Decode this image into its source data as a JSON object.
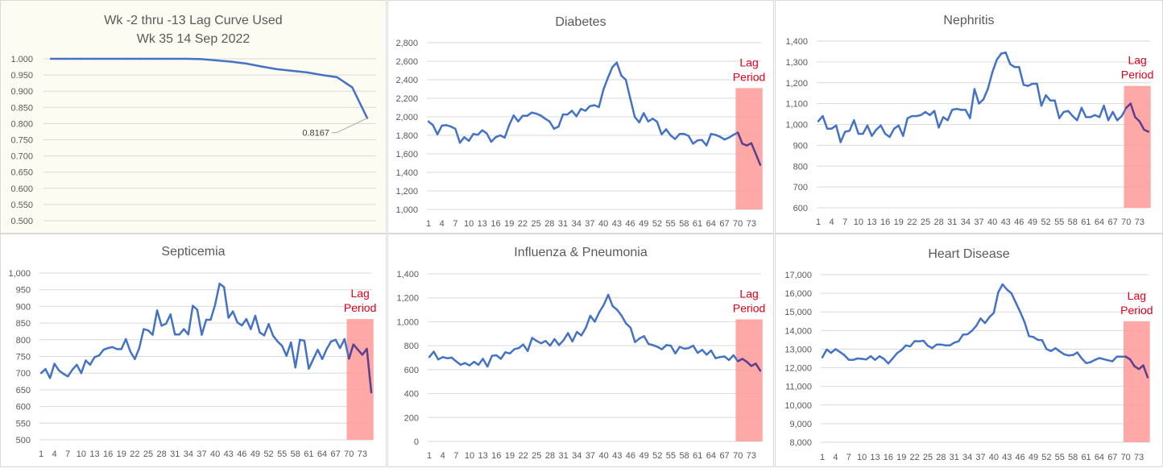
{
  "colors": {
    "line": "#4472c4",
    "line_in_lag": "#5b3f8c",
    "lag_fill": "#ff9999",
    "lag_text": "#e0001b",
    "grid": "#d9d9d9",
    "tick_text": "#595959"
  },
  "chart_data": [
    {
      "id": "lag-curve",
      "type": "line",
      "title": "Wk -2 thru -13 Lag Curve Used",
      "subtitle": "Wk 35 14 Sep 2022",
      "ylim": [
        0.5,
        1.0
      ],
      "yticks": [
        "1.000",
        "0.950",
        "0.900",
        "0.850",
        "0.800",
        "0.750",
        "0.700",
        "0.650",
        "0.600",
        "0.550",
        "0.500"
      ],
      "ytick_values": [
        1.0,
        0.95,
        0.9,
        0.85,
        0.8,
        0.75,
        0.7,
        0.65,
        0.6,
        0.55,
        0.5
      ],
      "grid": true,
      "x": [
        1,
        2,
        3,
        4,
        5,
        6,
        7,
        8,
        9,
        10,
        11,
        12,
        13,
        14,
        15,
        16,
        17,
        18,
        19,
        20,
        21,
        22
      ],
      "values": [
        1.0,
        1.0,
        1.0,
        1.0,
        1.0,
        1.0,
        1.0,
        1.0,
        1.0,
        1.0,
        0.999,
        0.995,
        0.991,
        0.985,
        0.976,
        0.968,
        0.963,
        0.958,
        0.95,
        0.943,
        0.912,
        0.8167
      ],
      "annotation": {
        "label": "0.8167",
        "point_index": 21
      }
    },
    {
      "id": "diabetes",
      "type": "line",
      "title": "Diabetes",
      "ylim": [
        1000,
        2800
      ],
      "yticks": [
        "2,800",
        "2,600",
        "2,400",
        "2,200",
        "2,000",
        "1,800",
        "1,600",
        "1,400",
        "1,200",
        "1,000"
      ],
      "ytick_values": [
        2800,
        2600,
        2400,
        2200,
        2000,
        1800,
        1600,
        1400,
        1200,
        1000
      ],
      "xticks": [
        "1",
        "4",
        "7",
        "10",
        "13",
        "16",
        "19",
        "22",
        "25",
        "28",
        "31",
        "34",
        "37",
        "40",
        "43",
        "46",
        "49",
        "52",
        "55",
        "58",
        "61",
        "64",
        "67",
        "70",
        "73"
      ],
      "grid": true,
      "lag_period": {
        "label_line1": "Lag",
        "label_line2": "Period",
        "start": 70,
        "end": 75,
        "top": 2310
      },
      "values": [
        1950,
        1910,
        1810,
        1905,
        1910,
        1895,
        1870,
        1720,
        1780,
        1740,
        1815,
        1805,
        1855,
        1820,
        1730,
        1780,
        1800,
        1775,
        1910,
        2015,
        1950,
        2010,
        2010,
        2045,
        2035,
        2015,
        1980,
        1950,
        1870,
        1895,
        2025,
        2025,
        2065,
        2005,
        2085,
        2065,
        2115,
        2125,
        2105,
        2290,
        2420,
        2535,
        2585,
        2445,
        2400,
        2200,
        2000,
        1940,
        2040,
        1950,
        1980,
        1945,
        1810,
        1865,
        1800,
        1760,
        1815,
        1815,
        1795,
        1710,
        1745,
        1750,
        1690,
        1815,
        1805,
        1785,
        1755,
        1775,
        1805,
        1830,
        1710,
        1690,
        1715,
        1600,
        1480
      ]
    },
    {
      "id": "nephritis",
      "type": "line",
      "title": "Nephritis",
      "ylim": [
        600,
        1400
      ],
      "yticks": [
        "1,400",
        "1,300",
        "1,200",
        "1,100",
        "1,000",
        "900",
        "800",
        "700",
        "600"
      ],
      "ytick_values": [
        1400,
        1300,
        1200,
        1100,
        1000,
        900,
        800,
        700,
        600
      ],
      "xticks": [
        "1",
        "4",
        "7",
        "10",
        "13",
        "16",
        "19",
        "22",
        "25",
        "28",
        "31",
        "34",
        "37",
        "40",
        "43",
        "46",
        "49",
        "52",
        "55",
        "58",
        "61",
        "64",
        "67",
        "70",
        "73"
      ],
      "grid": true,
      "lag_period": {
        "label_line1": "Lag",
        "label_line2": "Period",
        "start": 70,
        "end": 75,
        "top": 1185
      },
      "values": [
        1015,
        1040,
        980,
        980,
        995,
        915,
        965,
        970,
        1020,
        955,
        955,
        995,
        945,
        975,
        995,
        955,
        940,
        980,
        995,
        945,
        1030,
        1040,
        1040,
        1045,
        1060,
        1045,
        1065,
        985,
        1035,
        1020,
        1070,
        1075,
        1070,
        1070,
        1030,
        1170,
        1100,
        1120,
        1170,
        1250,
        1310,
        1340,
        1345,
        1290,
        1275,
        1275,
        1190,
        1185,
        1195,
        1195,
        1090,
        1140,
        1115,
        1115,
        1030,
        1060,
        1065,
        1040,
        1020,
        1080,
        1035,
        1035,
        1045,
        1035,
        1090,
        1020,
        1060,
        1020,
        1040,
        1080,
        1100,
        1035,
        1015,
        975,
        965
      ]
    },
    {
      "id": "septicemia",
      "type": "line",
      "title": "Septicemia",
      "ylim": [
        500,
        1000
      ],
      "yticks": [
        "1,000",
        "950",
        "900",
        "850",
        "800",
        "750",
        "700",
        "650",
        "600",
        "550",
        "500"
      ],
      "ytick_values": [
        1000,
        950,
        900,
        850,
        800,
        750,
        700,
        650,
        600,
        550,
        500
      ],
      "xticks": [
        "1",
        "4",
        "7",
        "10",
        "13",
        "16",
        "19",
        "22",
        "25",
        "28",
        "31",
        "34",
        "37",
        "40",
        "43",
        "46",
        "49",
        "52",
        "55",
        "58",
        "61",
        "64",
        "67",
        "70",
        "73"
      ],
      "grid": true,
      "lag_period": {
        "label_line1": "Lag",
        "label_line2": "Period",
        "start": 70,
        "end": 75,
        "top": 862
      },
      "values": [
        700,
        712,
        685,
        728,
        708,
        698,
        690,
        710,
        725,
        700,
        738,
        725,
        748,
        753,
        770,
        775,
        778,
        772,
        772,
        802,
        765,
        742,
        775,
        832,
        828,
        815,
        888,
        842,
        848,
        876,
        816,
        816,
        832,
        816,
        902,
        890,
        815,
        860,
        860,
        905,
        968,
        958,
        866,
        885,
        852,
        843,
        862,
        832,
        872,
        822,
        813,
        847,
        812,
        795,
        782,
        752,
        792,
        717,
        800,
        797,
        713,
        742,
        770,
        742,
        772,
        795,
        800,
        775,
        802,
        743,
        786,
        770,
        755,
        773,
        642
      ]
    },
    {
      "id": "influenza-pneumonia",
      "type": "line",
      "title": "Influenza & Pneumonia",
      "ylim": [
        0,
        1400
      ],
      "yticks": [
        "1,400",
        "1,200",
        "1,000",
        "800",
        "600",
        "400",
        "200",
        "0"
      ],
      "ytick_values": [
        1400,
        1200,
        1000,
        800,
        600,
        400,
        200,
        0
      ],
      "xticks": [
        "1",
        "4",
        "7",
        "10",
        "13",
        "16",
        "19",
        "22",
        "25",
        "28",
        "31",
        "34",
        "37",
        "40",
        "43",
        "46",
        "49",
        "52",
        "55",
        "58",
        "61",
        "64",
        "67",
        "70",
        "73"
      ],
      "grid": true,
      "lag_period": {
        "label_line1": "Lag",
        "label_line2": "Period",
        "start": 70,
        "end": 75,
        "top": 1020
      },
      "values": [
        705,
        750,
        685,
        705,
        695,
        700,
        670,
        640,
        655,
        635,
        665,
        640,
        690,
        625,
        715,
        720,
        690,
        745,
        735,
        770,
        780,
        810,
        755,
        865,
        840,
        820,
        840,
        800,
        855,
        805,
        845,
        905,
        835,
        915,
        885,
        950,
        1050,
        1000,
        1080,
        1140,
        1225,
        1130,
        1100,
        1050,
        985,
        950,
        830,
        860,
        880,
        815,
        805,
        790,
        770,
        805,
        800,
        735,
        790,
        775,
        780,
        800,
        740,
        765,
        725,
        760,
        695,
        705,
        710,
        680,
        720,
        670,
        690,
        665,
        630,
        650,
        590
      ]
    },
    {
      "id": "heart-disease",
      "type": "line",
      "title": "Heart Disease",
      "ylim": [
        8000,
        17000
      ],
      "yticks": [
        "17,000",
        "16,000",
        "15,000",
        "14,000",
        "13,000",
        "12,000",
        "11,000",
        "10,000",
        "9,000",
        "8,000"
      ],
      "ytick_values": [
        17000,
        16000,
        15000,
        14000,
        13000,
        12000,
        11000,
        10000,
        9000,
        8000
      ],
      "xticks": [
        "1",
        "4",
        "7",
        "10",
        "13",
        "16",
        "19",
        "22",
        "25",
        "28",
        "31",
        "34",
        "37",
        "40",
        "43",
        "46",
        "49",
        "52",
        "55",
        "58",
        "61",
        "64",
        "67",
        "70",
        "73"
      ],
      "grid": true,
      "lag_period": {
        "label_line1": "Lag",
        "label_line2": "Period",
        "start": 70,
        "end": 75,
        "top": 14500
      },
      "values": [
        12550,
        12980,
        12800,
        13000,
        12850,
        12680,
        12430,
        12420,
        12500,
        12480,
        12450,
        12620,
        12420,
        12620,
        12480,
        12230,
        12500,
        12780,
        12950,
        13200,
        13150,
        13430,
        13420,
        13450,
        13180,
        13060,
        13250,
        13250,
        13200,
        13200,
        13350,
        13420,
        13780,
        13800,
        13980,
        14250,
        14650,
        14400,
        14720,
        14950,
        16050,
        16480,
        16200,
        16000,
        15500,
        15000,
        14450,
        13700,
        13650,
        13500,
        13480,
        13000,
        12900,
        13050,
        12880,
        12720,
        12660,
        12680,
        12820,
        12500,
        12250,
        12300,
        12420,
        12520,
        12460,
        12400,
        12350,
        12600,
        12600,
        12600,
        12450,
        12080,
        11930,
        12130,
        11480
      ]
    }
  ]
}
